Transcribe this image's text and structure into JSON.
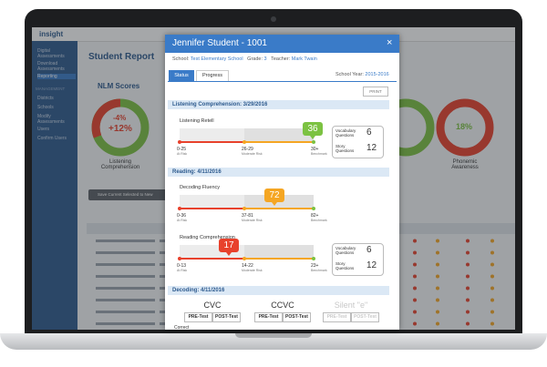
{
  "app": {
    "logo": "insight",
    "nav": [
      "Digital Assessments",
      "Download Assessments",
      "Reporting"
    ],
    "management_heading": "MANAGEMENT",
    "management": [
      "Districts",
      "Schools",
      "Modify Assessments",
      "Users",
      "Confirm Users"
    ],
    "page_title": "Student Report",
    "nlm_title": "NLM Scores",
    "gauges": [
      {
        "value_a": "-4%",
        "value_b": "+12%",
        "label": "Listening Comprehension"
      },
      {
        "value_a": "18%",
        "label": "Phonemic Awareness"
      }
    ],
    "save_button": "Save Current Selected to New"
  },
  "modal": {
    "title": "Jennifer Student - 1001",
    "school_label": "School:",
    "school": "Test Elementary School",
    "grade_label": "Grade:",
    "grade": "3",
    "teacher_label": "Teacher:",
    "teacher": "Mark Twain",
    "tabs": [
      "Status",
      "Progress"
    ],
    "school_year_label": "School Year:",
    "school_year": "2015-2016",
    "print": "PRINT",
    "sections": [
      {
        "title": "Listening Comprehension: 3/29/2016",
        "measures": [
          {
            "name": "Listening Retell",
            "score": "36",
            "scale": [
              {
                "range": "0-25",
                "label": "At Risk"
              },
              {
                "range": "26-29",
                "label": "Moderate Risk"
              },
              {
                "range": "30+",
                "label": "Benchmark"
              }
            ]
          }
        ],
        "side": [
          {
            "label": "Vocabulary Questions",
            "value": "6"
          },
          {
            "label": "Story Questions",
            "value": "12"
          }
        ]
      },
      {
        "title": "Reading: 4/11/2016",
        "measures": [
          {
            "name": "Decoding Fluency",
            "score": "72",
            "scale": [
              {
                "range": "0-36",
                "label": "At Risk"
              },
              {
                "range": "37-81",
                "label": "Moderate Risk"
              },
              {
                "range": "82+",
                "label": "Benchmark"
              }
            ]
          },
          {
            "name": "Reading Comprehension",
            "score": "17",
            "scale": [
              {
                "range": "0-13",
                "label": "At Risk"
              },
              {
                "range": "14-22",
                "label": "Moderate Risk"
              },
              {
                "range": "23+",
                "label": "Benchmark"
              }
            ]
          }
        ],
        "side": [
          {
            "label": "Vocabulary Questions",
            "value": "6"
          },
          {
            "label": "Story Questions",
            "value": "12"
          }
        ]
      },
      {
        "title": "Decoding: 4/11/2016",
        "columns": [
          "CVC",
          "CCVC",
          "Silent \"e\""
        ],
        "subcolumns": [
          "PRE-Test",
          "POST-Test"
        ],
        "row_label": "Correct"
      }
    ]
  }
}
